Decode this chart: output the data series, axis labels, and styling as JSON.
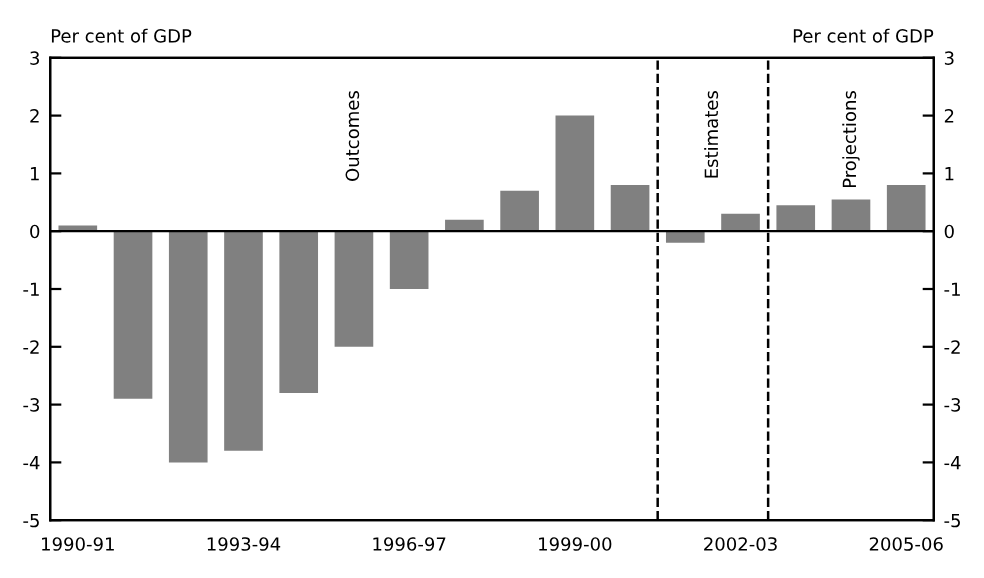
{
  "chart_data": {
    "type": "bar",
    "categories": [
      "1990-91",
      null,
      null,
      "1993-94",
      null,
      null,
      "1996-97",
      null,
      null,
      "1999-00",
      null,
      null,
      "2002-03",
      null,
      null,
      "2005-06"
    ],
    "values": [
      0.1,
      -2.9,
      -4.0,
      -3.8,
      -2.8,
      -2.0,
      -1.0,
      0.2,
      0.7,
      2.0,
      0.8,
      -0.2,
      0.3,
      0.45,
      0.55,
      0.8
    ],
    "color": "#808080",
    "ylabel": "Per cent of GDP",
    "y2label": "Per cent of GDP",
    "ylim": [
      -5,
      3
    ],
    "yticks": [
      -5,
      -4,
      -3,
      -2,
      -1,
      0,
      1,
      2,
      3
    ],
    "y2lim": [
      -5,
      3
    ],
    "y2ticks": [
      -5,
      -4,
      -3,
      -2,
      -1,
      0,
      1,
      2,
      3
    ],
    "annotations": [
      "Outcomes",
      "Estimates",
      "Projections"
    ],
    "grid": false,
    "legend": false
  }
}
